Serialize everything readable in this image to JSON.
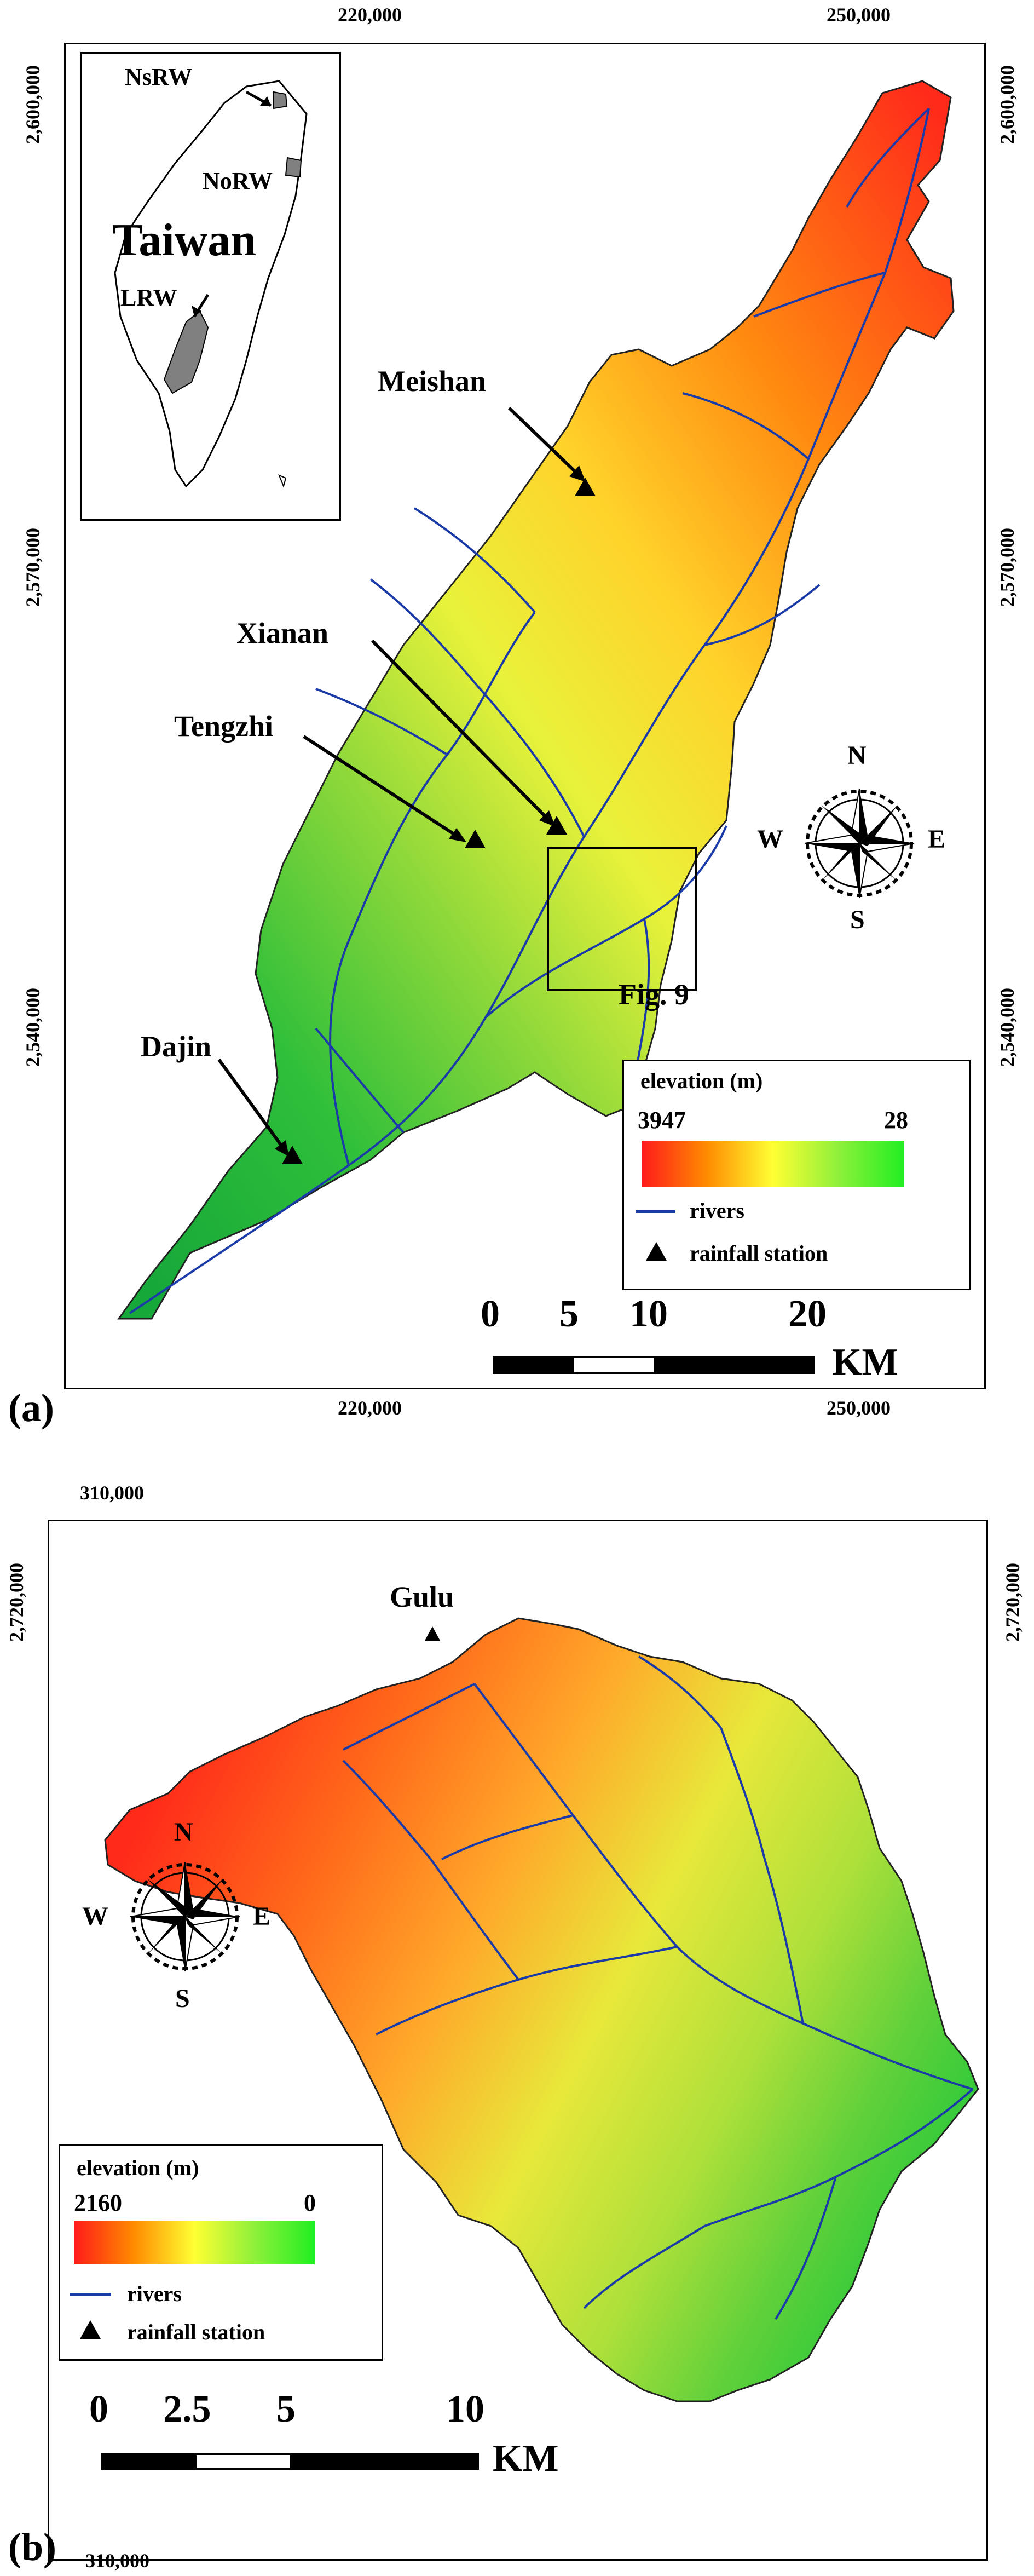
{
  "panel_a": {
    "id": "(a)",
    "top_coords": [
      "220,000",
      "250,000"
    ],
    "bottom_coords": [
      "220,000",
      "250,000"
    ],
    "left_coords": [
      "2,600,000",
      "2,570,000",
      "2,540,000"
    ],
    "right_coords": [
      "2,600,000",
      "2,570,000",
      "2,540,000"
    ],
    "inset": {
      "title": "Taiwan",
      "labels": [
        "NsRW",
        "NoRW",
        "LRW"
      ]
    },
    "stations": [
      "Meishan",
      "Xianan",
      "Tengzhi",
      "Dajin"
    ],
    "fig_ref": "Fig. 9",
    "compass": {
      "n": "N",
      "s": "S",
      "e": "E",
      "w": "W"
    },
    "legend": {
      "title": "elevation (m)",
      "max": "3947",
      "min": "28",
      "rivers": "rivers",
      "station": "rainfall station"
    },
    "scale": {
      "ticks": [
        "0",
        "5",
        "10",
        "20"
      ],
      "unit": "KM"
    }
  },
  "panel_b": {
    "id": "(b)",
    "top_coords": [
      "310,000"
    ],
    "bottom_coords": [
      "310,000"
    ],
    "left_coords": [
      "2,720,000"
    ],
    "right_coords": [
      "2,720,000"
    ],
    "stations": [
      "Gulu"
    ],
    "compass": {
      "n": "N",
      "s": "S",
      "e": "E",
      "w": "W"
    },
    "legend": {
      "title": "elevation (m)",
      "max": "2160",
      "min": "0",
      "rivers": "rivers",
      "station": "rainfall station"
    },
    "scale": {
      "ticks": [
        "0",
        "2.5",
        "5",
        "10"
      ],
      "unit": "KM"
    }
  },
  "colors": {
    "high": "#ff1a1a",
    "mid": "#ffff33",
    "low": "#22ee22",
    "river": "#1a3aa8",
    "frame": "#000000"
  }
}
